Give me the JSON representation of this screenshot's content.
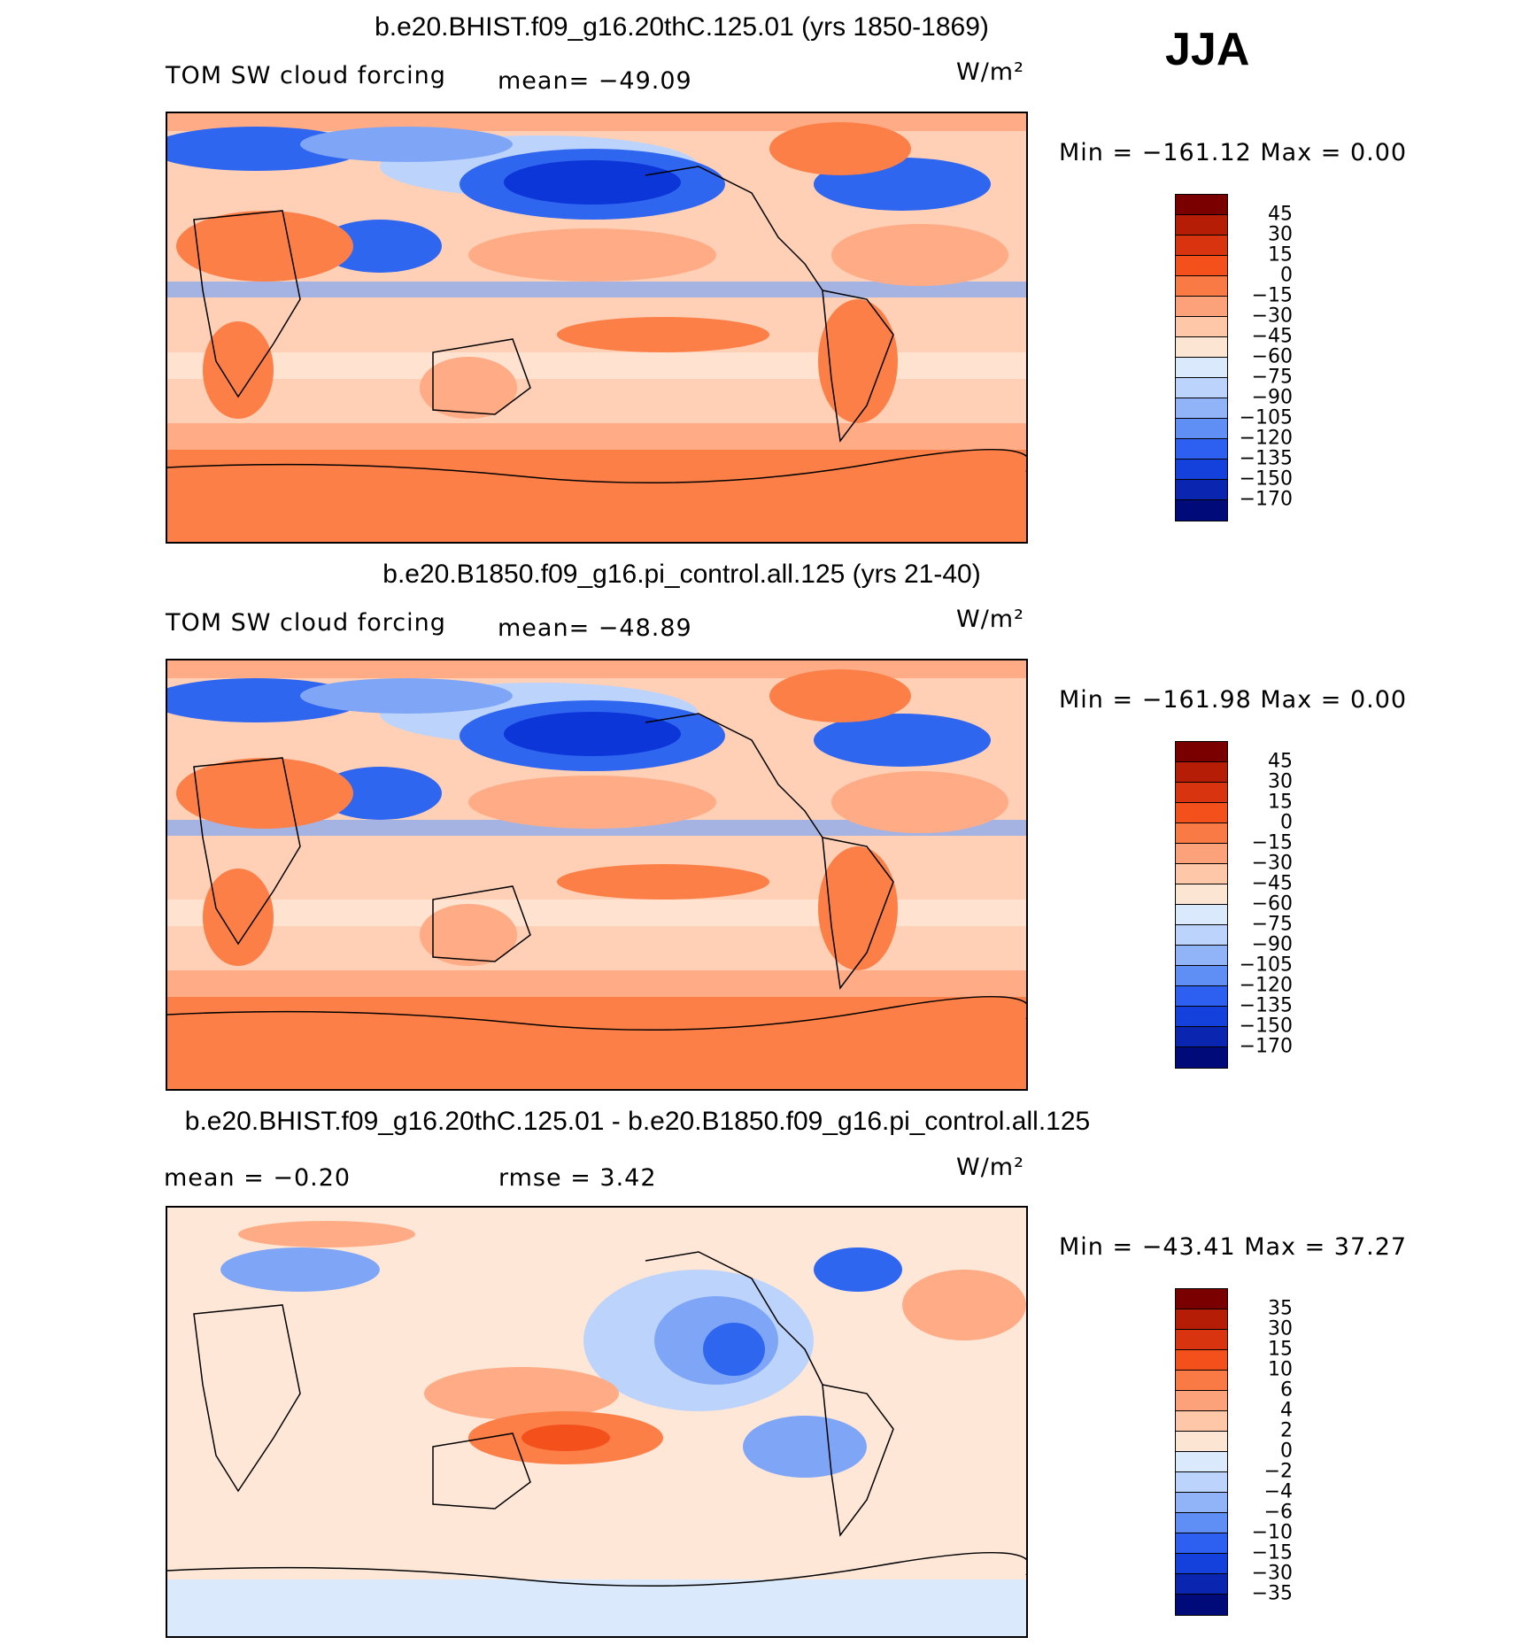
{
  "season": "JJA",
  "colors": {
    "positive": [
      "#fc7f48",
      "#ffac86",
      "#ffd0b6",
      "#ffe7d7"
    ],
    "negative": [
      "#dbe9fc",
      "#bcd3fb",
      "#7fa6f6",
      "#2f66f0",
      "#0c36d8"
    ]
  },
  "panels": [
    {
      "title": "b.e20.BHIST.f09_g16.20thC.125.01 (yrs 1850-1869)",
      "left_label": "TOM SW cloud forcing",
      "mean_text": "mean= −49.09",
      "units": "W/m²",
      "stats": "Min = −161.12  Max =    0.00",
      "contour_levels": [
        "45",
        "30",
        "15",
        "0",
        "−15",
        "−30",
        "−45",
        "−60",
        "−75",
        "−90",
        "−105",
        "−120",
        "−135",
        "−150",
        "−170"
      ],
      "colorbar": [
        "#7a0000",
        "#b51d06",
        "#d83410",
        "#f4501c",
        "#fa7a45",
        "#fca27a",
        "#fdc7a8",
        "#fde5d4",
        "#dbe9fc",
        "#bcd3fb",
        "#91b4f8",
        "#5f8ef4",
        "#2d5ff0",
        "#1440dc",
        "#0a25b0",
        "#000a78"
      ]
    },
    {
      "title": "b.e20.B1850.f09_g16.pi_control.all.125 (yrs 21-40)",
      "left_label": "TOM SW cloud forcing",
      "mean_text": "mean= −48.89",
      "units": "W/m²",
      "stats": "Min = −161.98  Max =    0.00",
      "contour_levels": [
        "45",
        "30",
        "15",
        "0",
        "−15",
        "−30",
        "−45",
        "−60",
        "−75",
        "−90",
        "−105",
        "−120",
        "−135",
        "−150",
        "−170"
      ],
      "colorbar": [
        "#7a0000",
        "#b51d06",
        "#d83410",
        "#f4501c",
        "#fa7a45",
        "#fca27a",
        "#fdc7a8",
        "#fde5d4",
        "#dbe9fc",
        "#bcd3fb",
        "#91b4f8",
        "#5f8ef4",
        "#2d5ff0",
        "#1440dc",
        "#0a25b0",
        "#000a78"
      ]
    },
    {
      "title": "b.e20.BHIST.f09_g16.20thC.125.01 - b.e20.B1850.f09_g16.pi_control.all.125",
      "left_label": "mean =   −0.20",
      "mean_text": "rmse =    3.42",
      "units": "W/m²",
      "stats": "Min = −43.41  Max =  37.27",
      "contour_levels": [
        "35",
        "30",
        "15",
        "10",
        "6",
        "4",
        "2",
        "0",
        "−2",
        "−4",
        "−6",
        "−10",
        "−15",
        "−30",
        "−35"
      ],
      "colorbar": [
        "#7a0000",
        "#b51d06",
        "#d83410",
        "#f4501c",
        "#fa7a45",
        "#fca27a",
        "#fdc7a8",
        "#fde5d4",
        "#dbe9fc",
        "#bcd3fb",
        "#91b4f8",
        "#5f8ef4",
        "#2d5ff0",
        "#1440dc",
        "#0a25b0",
        "#000a78"
      ]
    }
  ]
}
